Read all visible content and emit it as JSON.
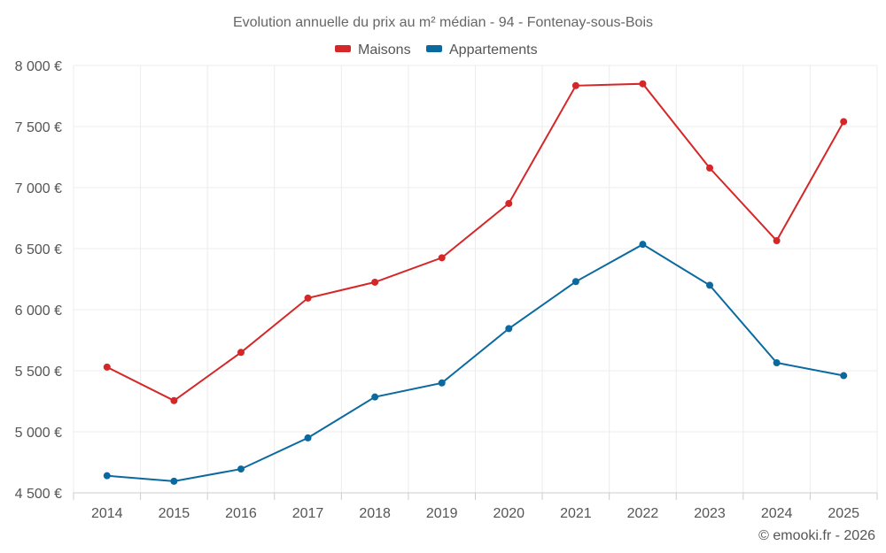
{
  "chart_data": {
    "type": "line",
    "title": "Evolution annuelle du prix au m² médian - 94 - Fontenay-sous-Bois",
    "categories": [
      "2014",
      "2015",
      "2016",
      "2017",
      "2018",
      "2019",
      "2020",
      "2021",
      "2022",
      "2023",
      "2024",
      "2025"
    ],
    "series": [
      {
        "name": "Maisons",
        "color": "#d62728",
        "values": [
          5530,
          5255,
          5650,
          6095,
          6225,
          6425,
          6870,
          7835,
          7850,
          7160,
          6565,
          7540
        ]
      },
      {
        "name": "Appartements",
        "color": "#0a6aa0",
        "values": [
          4640,
          4595,
          4695,
          4950,
          5285,
          5400,
          5845,
          6230,
          6535,
          6200,
          5565,
          5460
        ]
      }
    ],
    "ylim": [
      4500,
      8000
    ],
    "yticks": [
      4500,
      5000,
      5500,
      6000,
      6500,
      7000,
      7500,
      8000
    ],
    "ytick_labels": [
      "4 500 €",
      "5 000 €",
      "5 500 €",
      "6 000 €",
      "6 500 €",
      "7 000 €",
      "7 500 €",
      "8 000 €"
    ],
    "xlabel": "",
    "ylabel": "",
    "legend_position": "top-center",
    "grid": true
  },
  "credit": "© emooki.fr - 2026"
}
